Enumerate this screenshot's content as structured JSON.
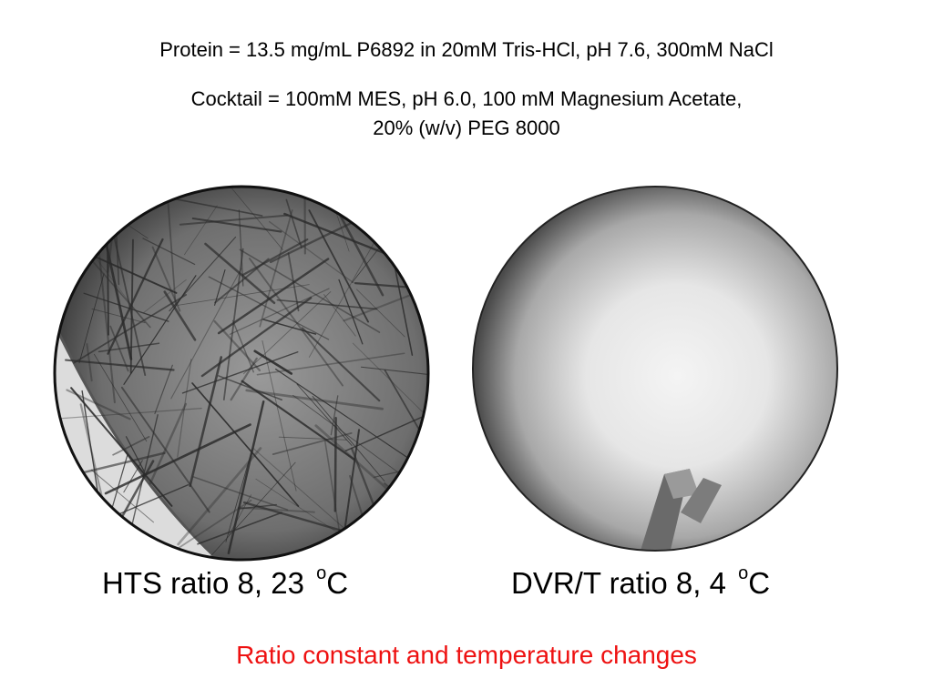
{
  "header": {
    "protein_line": "Protein = 13.5 mg/mL P6892 in 20mM Tris-HCl, pH 7.6, 300mM NaCl",
    "cocktail_line1": "Cocktail = 100mM MES, pH 6.0, 100 mM Magnesium Acetate,",
    "cocktail_line2": "20% (w/v) PEG 8000"
  },
  "panels": [
    {
      "label": "HTS ratio 8, 23 ",
      "unit_super": "o",
      "unit": "C"
    },
    {
      "label": "DVR/T ratio 8, 4 ",
      "unit_super": "o",
      "unit": "C"
    }
  ],
  "footer": {
    "note": "Ratio constant and temperature changes",
    "note_color": "#ee1111"
  }
}
